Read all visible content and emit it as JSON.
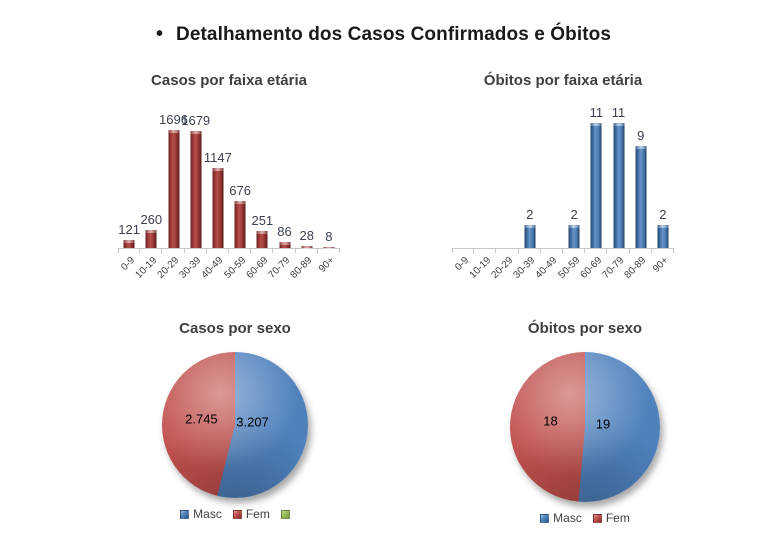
{
  "header": {
    "bullet": "•",
    "title": "Detalhamento dos Casos Confirmados e Óbitos"
  },
  "colors": {
    "bar_red": "#953735",
    "bar_blue": "#4F81BD",
    "pie_blue": "#4F81BD",
    "pie_red": "#C0504D",
    "legend_green": "#9BBB59",
    "axis_line": "#C6C6C6",
    "data_label_text": "#3B4152",
    "title_text": "#3F3F3F"
  },
  "chart_data": [
    {
      "type": "bar",
      "title": "Casos por faixa etária",
      "categories": [
        "0-9",
        "10-19",
        "20-29",
        "30-39",
        "40-49",
        "50-59",
        "60-69",
        "70-79",
        "80-89",
        "90+"
      ],
      "values": [
        121,
        260,
        1696,
        1679,
        1147,
        676,
        251,
        86,
        28,
        8
      ],
      "data_labels": [
        "121",
        "260",
        "1696",
        "1679",
        "1147",
        "676",
        "251",
        "86",
        "28",
        "8"
      ],
      "bar_color": "#953735",
      "xlabel": "",
      "ylabel": "",
      "grid": false,
      "legend_position": "none",
      "y_axis_visible": false
    },
    {
      "type": "bar",
      "title": "Óbitos por faixa etária",
      "categories": [
        "0-9",
        "10-19",
        "20-29",
        "30-39",
        "40-49",
        "50-59",
        "60-69",
        "70-79",
        "80-89",
        "90+"
      ],
      "values": [
        0,
        0,
        0,
        2,
        0,
        2,
        11,
        11,
        9,
        2
      ],
      "data_labels": [
        "",
        "",
        "",
        "2",
        "",
        "2",
        "11",
        "11",
        "9",
        "2"
      ],
      "bar_color": "#4F81BD",
      "xlabel": "",
      "ylabel": "",
      "grid": false,
      "legend_position": "none",
      "y_axis_visible": false
    },
    {
      "type": "pie",
      "title": "Casos por sexo",
      "slices": [
        {
          "label": "Masc",
          "value": 3207,
          "display": "3.207",
          "color": "#4F81BD"
        },
        {
          "label": "Fem",
          "value": 2745,
          "display": "2.745",
          "color": "#C0504D"
        }
      ],
      "legend": [
        {
          "label": "Masc",
          "color": "#4F81BD"
        },
        {
          "label": "Fem",
          "color": "#C0504D"
        },
        {
          "label": "",
          "color": "#9BBB59"
        }
      ],
      "start_angle_deg": 0,
      "legend_position": "bottom"
    },
    {
      "type": "pie",
      "title": "Óbitos por sexo",
      "slices": [
        {
          "label": "Masc",
          "value": 19,
          "display": "19",
          "color": "#4F81BD"
        },
        {
          "label": "Fem",
          "value": 18,
          "display": "18",
          "color": "#C0504D"
        }
      ],
      "legend": [
        {
          "label": "Masc",
          "color": "#4F81BD"
        },
        {
          "label": "Fem",
          "color": "#C0504D"
        }
      ],
      "start_angle_deg": 0,
      "legend_position": "bottom"
    }
  ]
}
